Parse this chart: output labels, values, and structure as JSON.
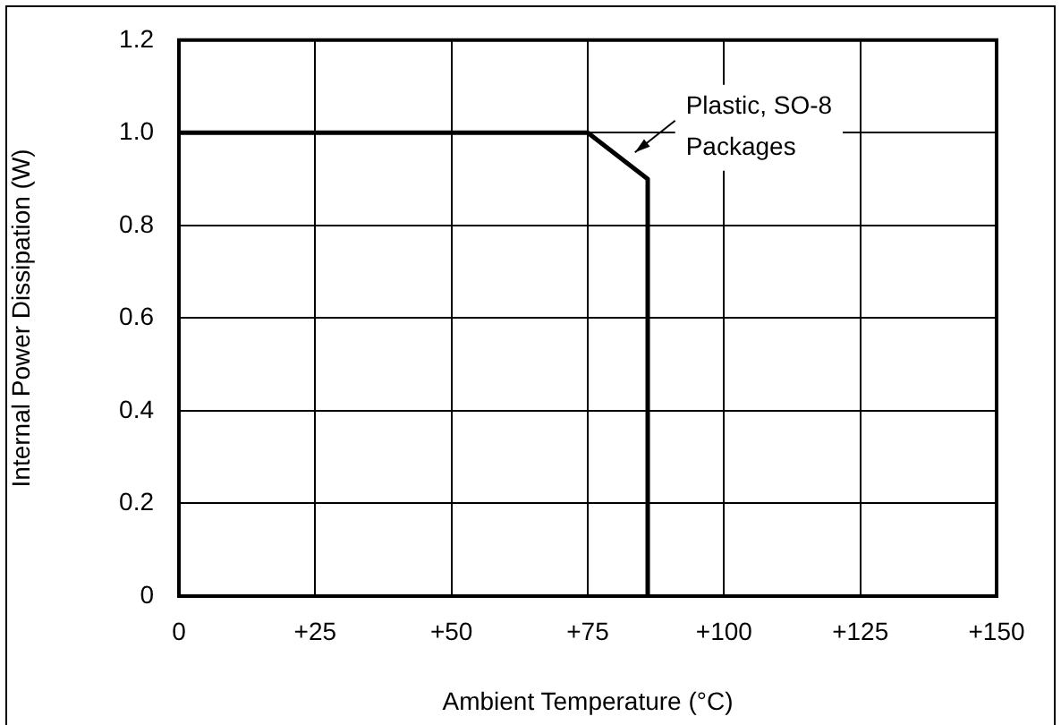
{
  "chart_data": {
    "type": "line",
    "xlabel": "Ambient Temperature (°C)",
    "ylabel": "Internal Power Dissipation (W)",
    "x": [
      0,
      75,
      86,
      86
    ],
    "series": [
      {
        "color": "#000000",
        "values": [
          1.0,
          1.0,
          0.9,
          0
        ]
      }
    ],
    "xlim": [
      0,
      150
    ],
    "xticks": [
      0,
      {
        "value": 25,
        "label": "+25"
      },
      {
        "value": 50,
        "label": "+50"
      },
      {
        "value": 75,
        "label": "+75"
      },
      {
        "value": 100,
        "label": "+100"
      },
      {
        "value": 125,
        "label": "+125"
      },
      {
        "value": 150,
        "label": "+150"
      }
    ],
    "ylim": [
      0,
      1.2
    ],
    "yticks": [
      0,
      0.2,
      0.4,
      0.6,
      0.8,
      {
        "value": 1,
        "label": "1.0"
      },
      1.2
    ],
    "grid": true,
    "legend": false,
    "marker": "none",
    "line_style": "solid",
    "annotations": [
      {
        "text": "Plastic, SO-8\nPackages",
        "x": 83,
        "y": 0.95
      }
    ]
  }
}
